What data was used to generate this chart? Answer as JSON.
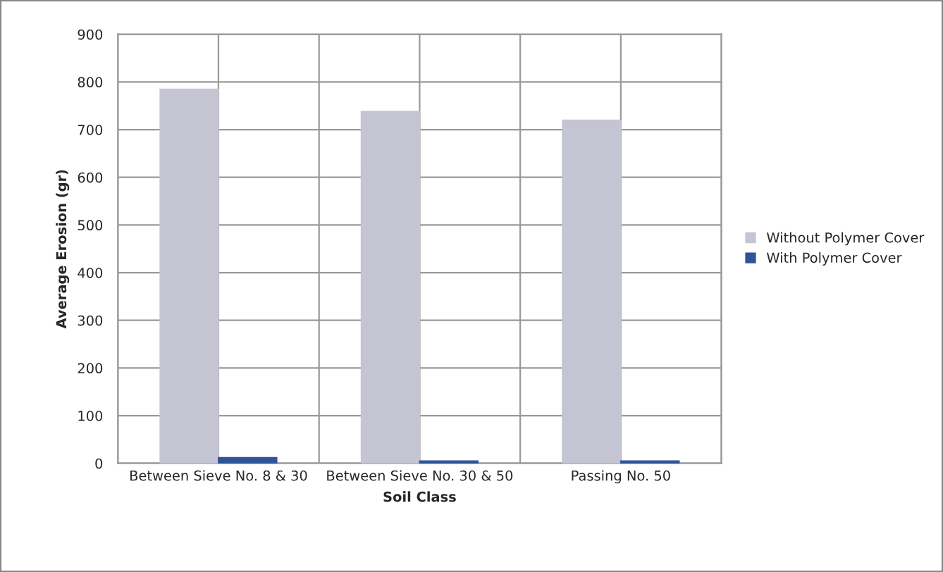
{
  "chart_data": {
    "type": "bar",
    "xlabel": "Soil Class",
    "ylabel": "Average Erosion (gr)",
    "categories": [
      "Between Sieve No. 8 & 30",
      "Between Sieve No. 30 & 50",
      "Passing No. 50"
    ],
    "series": [
      {
        "name": "Without Polymer Cover",
        "color": "#c4c4d2",
        "values": [
          785,
          738,
          720
        ]
      },
      {
        "name": "With Polymer Cover",
        "color": "#2e5597",
        "values": [
          12,
          5,
          5
        ]
      }
    ],
    "ylim": [
      0,
      900
    ],
    "yticks": [
      0,
      100,
      200,
      300,
      400,
      500,
      600,
      700,
      800,
      900
    ],
    "grid": true,
    "legend": "right"
  }
}
